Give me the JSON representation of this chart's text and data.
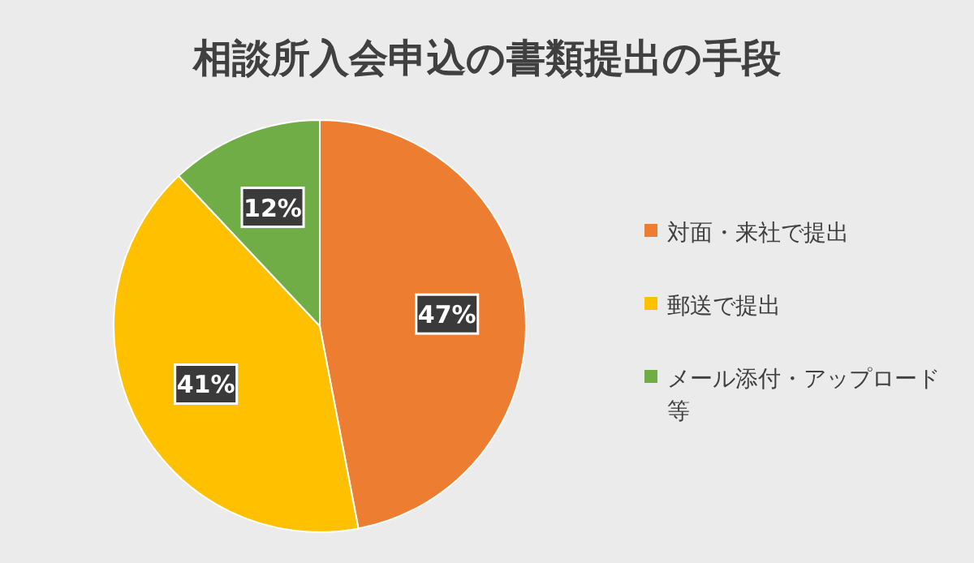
{
  "chart_data": {
    "type": "pie",
    "title": "相談所入会申込の書類提出の手段",
    "categories": [
      "対面・来社で提出",
      "郵送で提出",
      "メール添付・アップロード等"
    ],
    "values": [
      47,
      41,
      12
    ],
    "colors": [
      "#ed7d31",
      "#ffc000",
      "#70ad47"
    ],
    "value_labels": [
      "47%",
      "41%",
      "12%"
    ],
    "legend": "right"
  }
}
